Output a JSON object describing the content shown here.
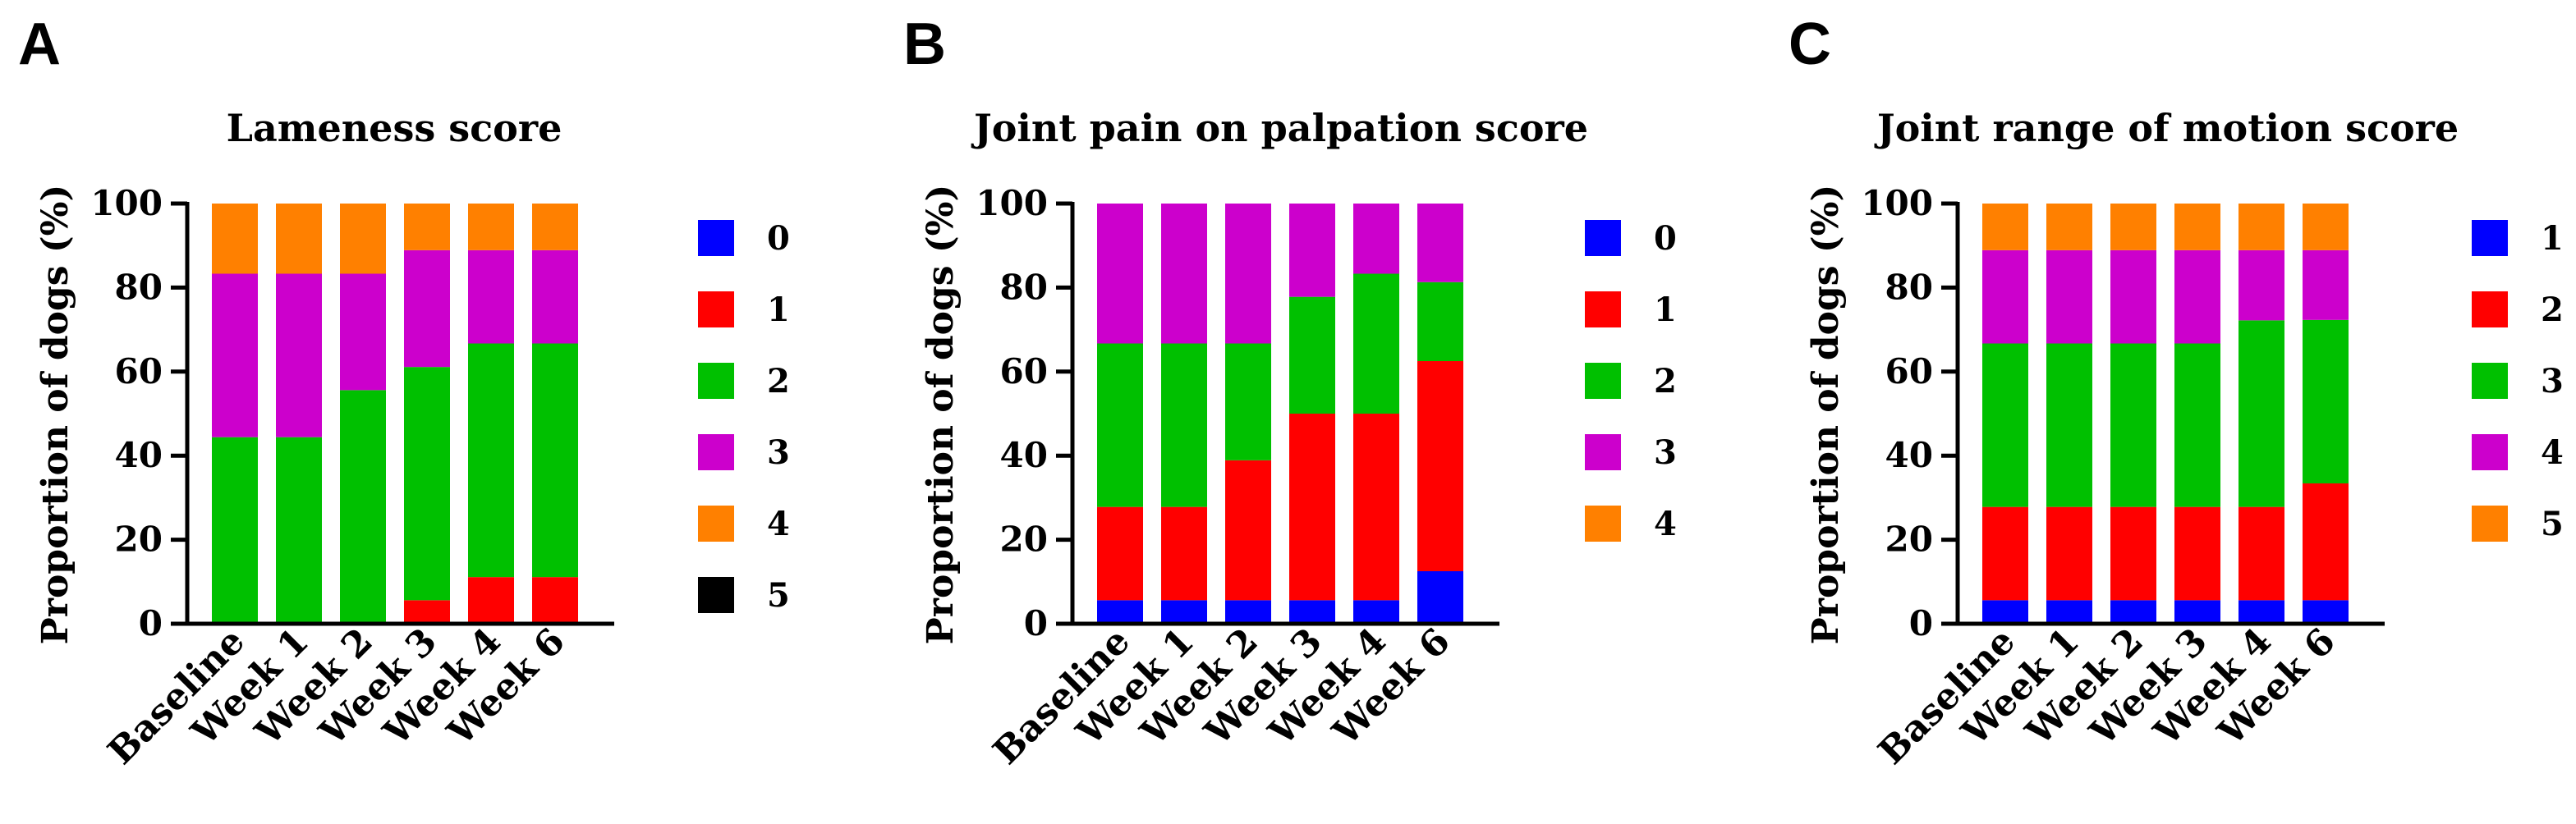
{
  "chart_data": [
    {
      "panel": "A",
      "type": "bar",
      "stacked": true,
      "title": "Lameness score",
      "ylabel": "Proportion of dogs (%)",
      "xlabel": "",
      "ylim": [
        0,
        100
      ],
      "yticks": [
        "0",
        "20",
        "40",
        "60",
        "80",
        "100"
      ],
      "categories": [
        "Baseline",
        "Week 1",
        "Week 2",
        "Week 3",
        "Week 4",
        "Week 6"
      ],
      "series": [
        {
          "name": "0",
          "color": "#0000FF",
          "values": [
            0,
            0,
            0,
            0,
            0,
            0
          ]
        },
        {
          "name": "1",
          "color": "#FF0000",
          "values": [
            0,
            0,
            0,
            5.6,
            11.1,
            11.1
          ]
        },
        {
          "name": "2",
          "color": "#00C000",
          "values": [
            44.4,
            44.4,
            55.6,
            55.5,
            55.6,
            55.6
          ]
        },
        {
          "name": "3",
          "color": "#CC00CC",
          "values": [
            38.9,
            38.9,
            27.7,
            27.8,
            22.2,
            22.2
          ]
        },
        {
          "name": "4",
          "color": "#FF8000",
          "values": [
            16.7,
            16.7,
            16.7,
            11.1,
            11.1,
            11.1
          ]
        },
        {
          "name": "5",
          "color": "#000000",
          "values": [
            0,
            0,
            0,
            0,
            0,
            0
          ]
        }
      ]
    },
    {
      "panel": "B",
      "type": "bar",
      "stacked": true,
      "title": "Joint pain on palpation score",
      "ylabel": "Proportion of dogs (%)",
      "xlabel": "",
      "ylim": [
        0,
        100
      ],
      "yticks": [
        "0",
        "20",
        "40",
        "60",
        "80",
        "100"
      ],
      "categories": [
        "Baseline",
        "Week 1",
        "Week 2",
        "Week 3",
        "Week 4",
        "Week 6"
      ],
      "series": [
        {
          "name": "0",
          "color": "#0000FF",
          "values": [
            5.6,
            5.6,
            5.6,
            5.6,
            5.6,
            12.5
          ]
        },
        {
          "name": "1",
          "color": "#FF0000",
          "values": [
            22.2,
            22.2,
            33.3,
            44.4,
            44.4,
            50.0
          ]
        },
        {
          "name": "2",
          "color": "#00C000",
          "values": [
            38.9,
            38.9,
            27.8,
            27.8,
            33.3,
            18.8
          ]
        },
        {
          "name": "3",
          "color": "#CC00CC",
          "values": [
            33.3,
            33.3,
            33.3,
            22.2,
            16.7,
            18.7
          ]
        },
        {
          "name": "4",
          "color": "#FF8000",
          "values": [
            0,
            0,
            0,
            0,
            0,
            0
          ]
        }
      ]
    },
    {
      "panel": "C",
      "type": "bar",
      "stacked": true,
      "title": "Joint range of motion score",
      "ylabel": "Proportion of dogs (%)",
      "xlabel": "",
      "ylim": [
        0,
        100
      ],
      "yticks": [
        "0",
        "20",
        "40",
        "60",
        "80",
        "100"
      ],
      "categories": [
        "Baseline",
        "Week 1",
        "Week 2",
        "Week 3",
        "Week 4",
        "Week 6"
      ],
      "series": [
        {
          "name": "1",
          "color": "#0000FF",
          "values": [
            5.6,
            5.6,
            5.6,
            5.6,
            5.6,
            5.6
          ]
        },
        {
          "name": "2",
          "color": "#FF0000",
          "values": [
            22.2,
            22.2,
            22.2,
            22.2,
            22.2,
            27.8
          ]
        },
        {
          "name": "3",
          "color": "#00C000",
          "values": [
            38.9,
            38.9,
            38.9,
            38.9,
            44.4,
            38.9
          ]
        },
        {
          "name": "4",
          "color": "#CC00CC",
          "values": [
            22.2,
            22.2,
            22.2,
            22.2,
            16.7,
            16.6
          ]
        },
        {
          "name": "5",
          "color": "#FF8000",
          "values": [
            11.1,
            11.1,
            11.1,
            11.1,
            11.1,
            11.1
          ]
        }
      ]
    }
  ]
}
